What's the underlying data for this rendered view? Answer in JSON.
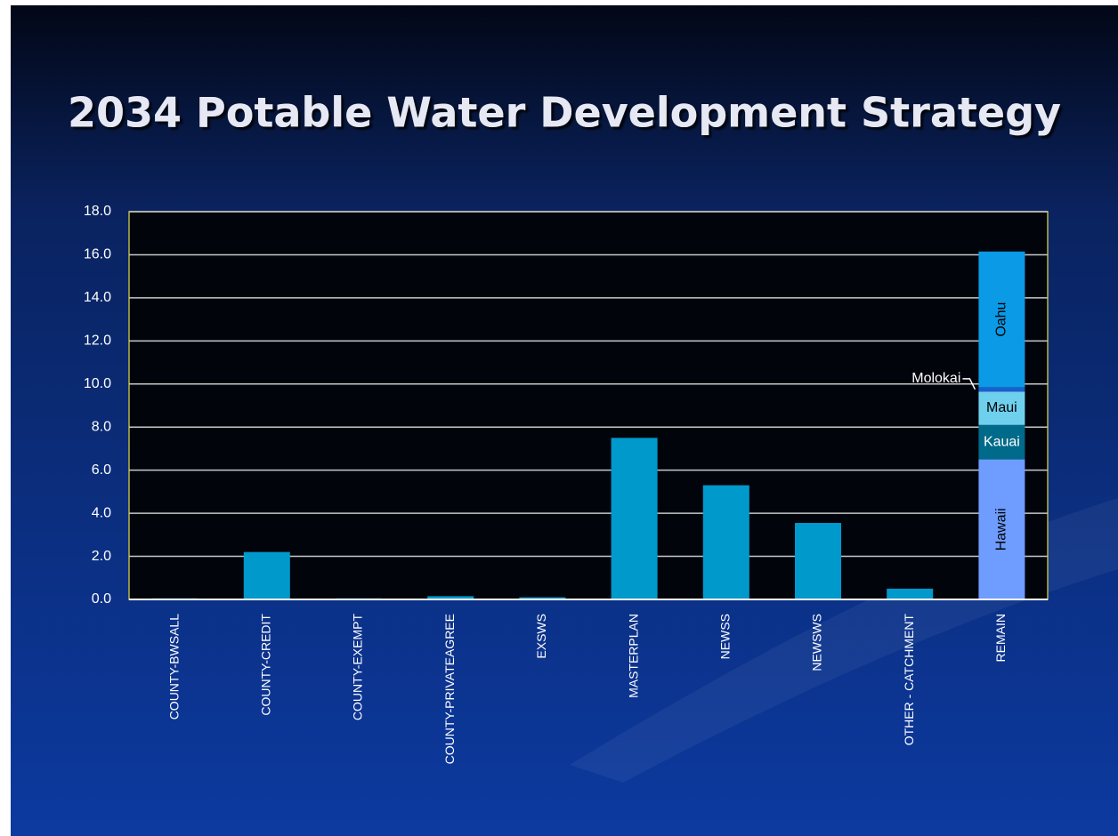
{
  "chart_data": {
    "type": "stacked_bar",
    "title": "2034 Potable Water Development Strategy",
    "categories": [
      "COUNTY-BWSALL",
      "COUNTY-CREDIT",
      "COUNTY-EXEMPT",
      "COUNTY-PRIVATEAGREE",
      "EXSWS",
      "MASTERPLAN",
      "NEWSS",
      "NEWSWS",
      "OTHER - CATCHMENT",
      "REMAIN"
    ],
    "series": [
      {
        "color": "#0099cc",
        "values": [
          0.05,
          2.2,
          0.05,
          0.15,
          0.1,
          7.5,
          5.3,
          3.55,
          0.5,
          null
        ]
      },
      {
        "name": "Hawaii",
        "color": "#6e9cff",
        "values": [
          null,
          null,
          null,
          null,
          null,
          null,
          null,
          null,
          null,
          6.5
        ]
      },
      {
        "name": "Kauai",
        "color": "#006a8a",
        "values": [
          null,
          null,
          null,
          null,
          null,
          null,
          null,
          null,
          null,
          1.6
        ]
      },
      {
        "name": "Maui",
        "color": "#6fd0ee",
        "values": [
          null,
          null,
          null,
          null,
          null,
          null,
          null,
          null,
          null,
          1.55
        ]
      },
      {
        "name": "Molokai",
        "color": "#1a5fd0",
        "values": [
          null,
          null,
          null,
          null,
          null,
          null,
          null,
          null,
          null,
          0.2
        ]
      },
      {
        "name": "Oahu",
        "color": "#0a9ae6",
        "values": [
          null,
          null,
          null,
          null,
          null,
          null,
          null,
          null,
          null,
          6.3
        ]
      }
    ],
    "ylim": [
      0,
      18
    ],
    "yticks": [
      {
        "value": 0,
        "label": "0.0"
      },
      {
        "value": 2,
        "label": "2.0"
      },
      {
        "value": 4,
        "label": "4.0"
      },
      {
        "value": 6,
        "label": "6.0"
      },
      {
        "value": 8,
        "label": "8.0"
      },
      {
        "value": 10,
        "label": "10.0"
      },
      {
        "value": 12,
        "label": "12.0"
      },
      {
        "value": 14,
        "label": "14.0"
      },
      {
        "value": 16,
        "label": "16.0"
      },
      {
        "value": 18,
        "label": "18.0"
      }
    ],
    "grid": true
  }
}
